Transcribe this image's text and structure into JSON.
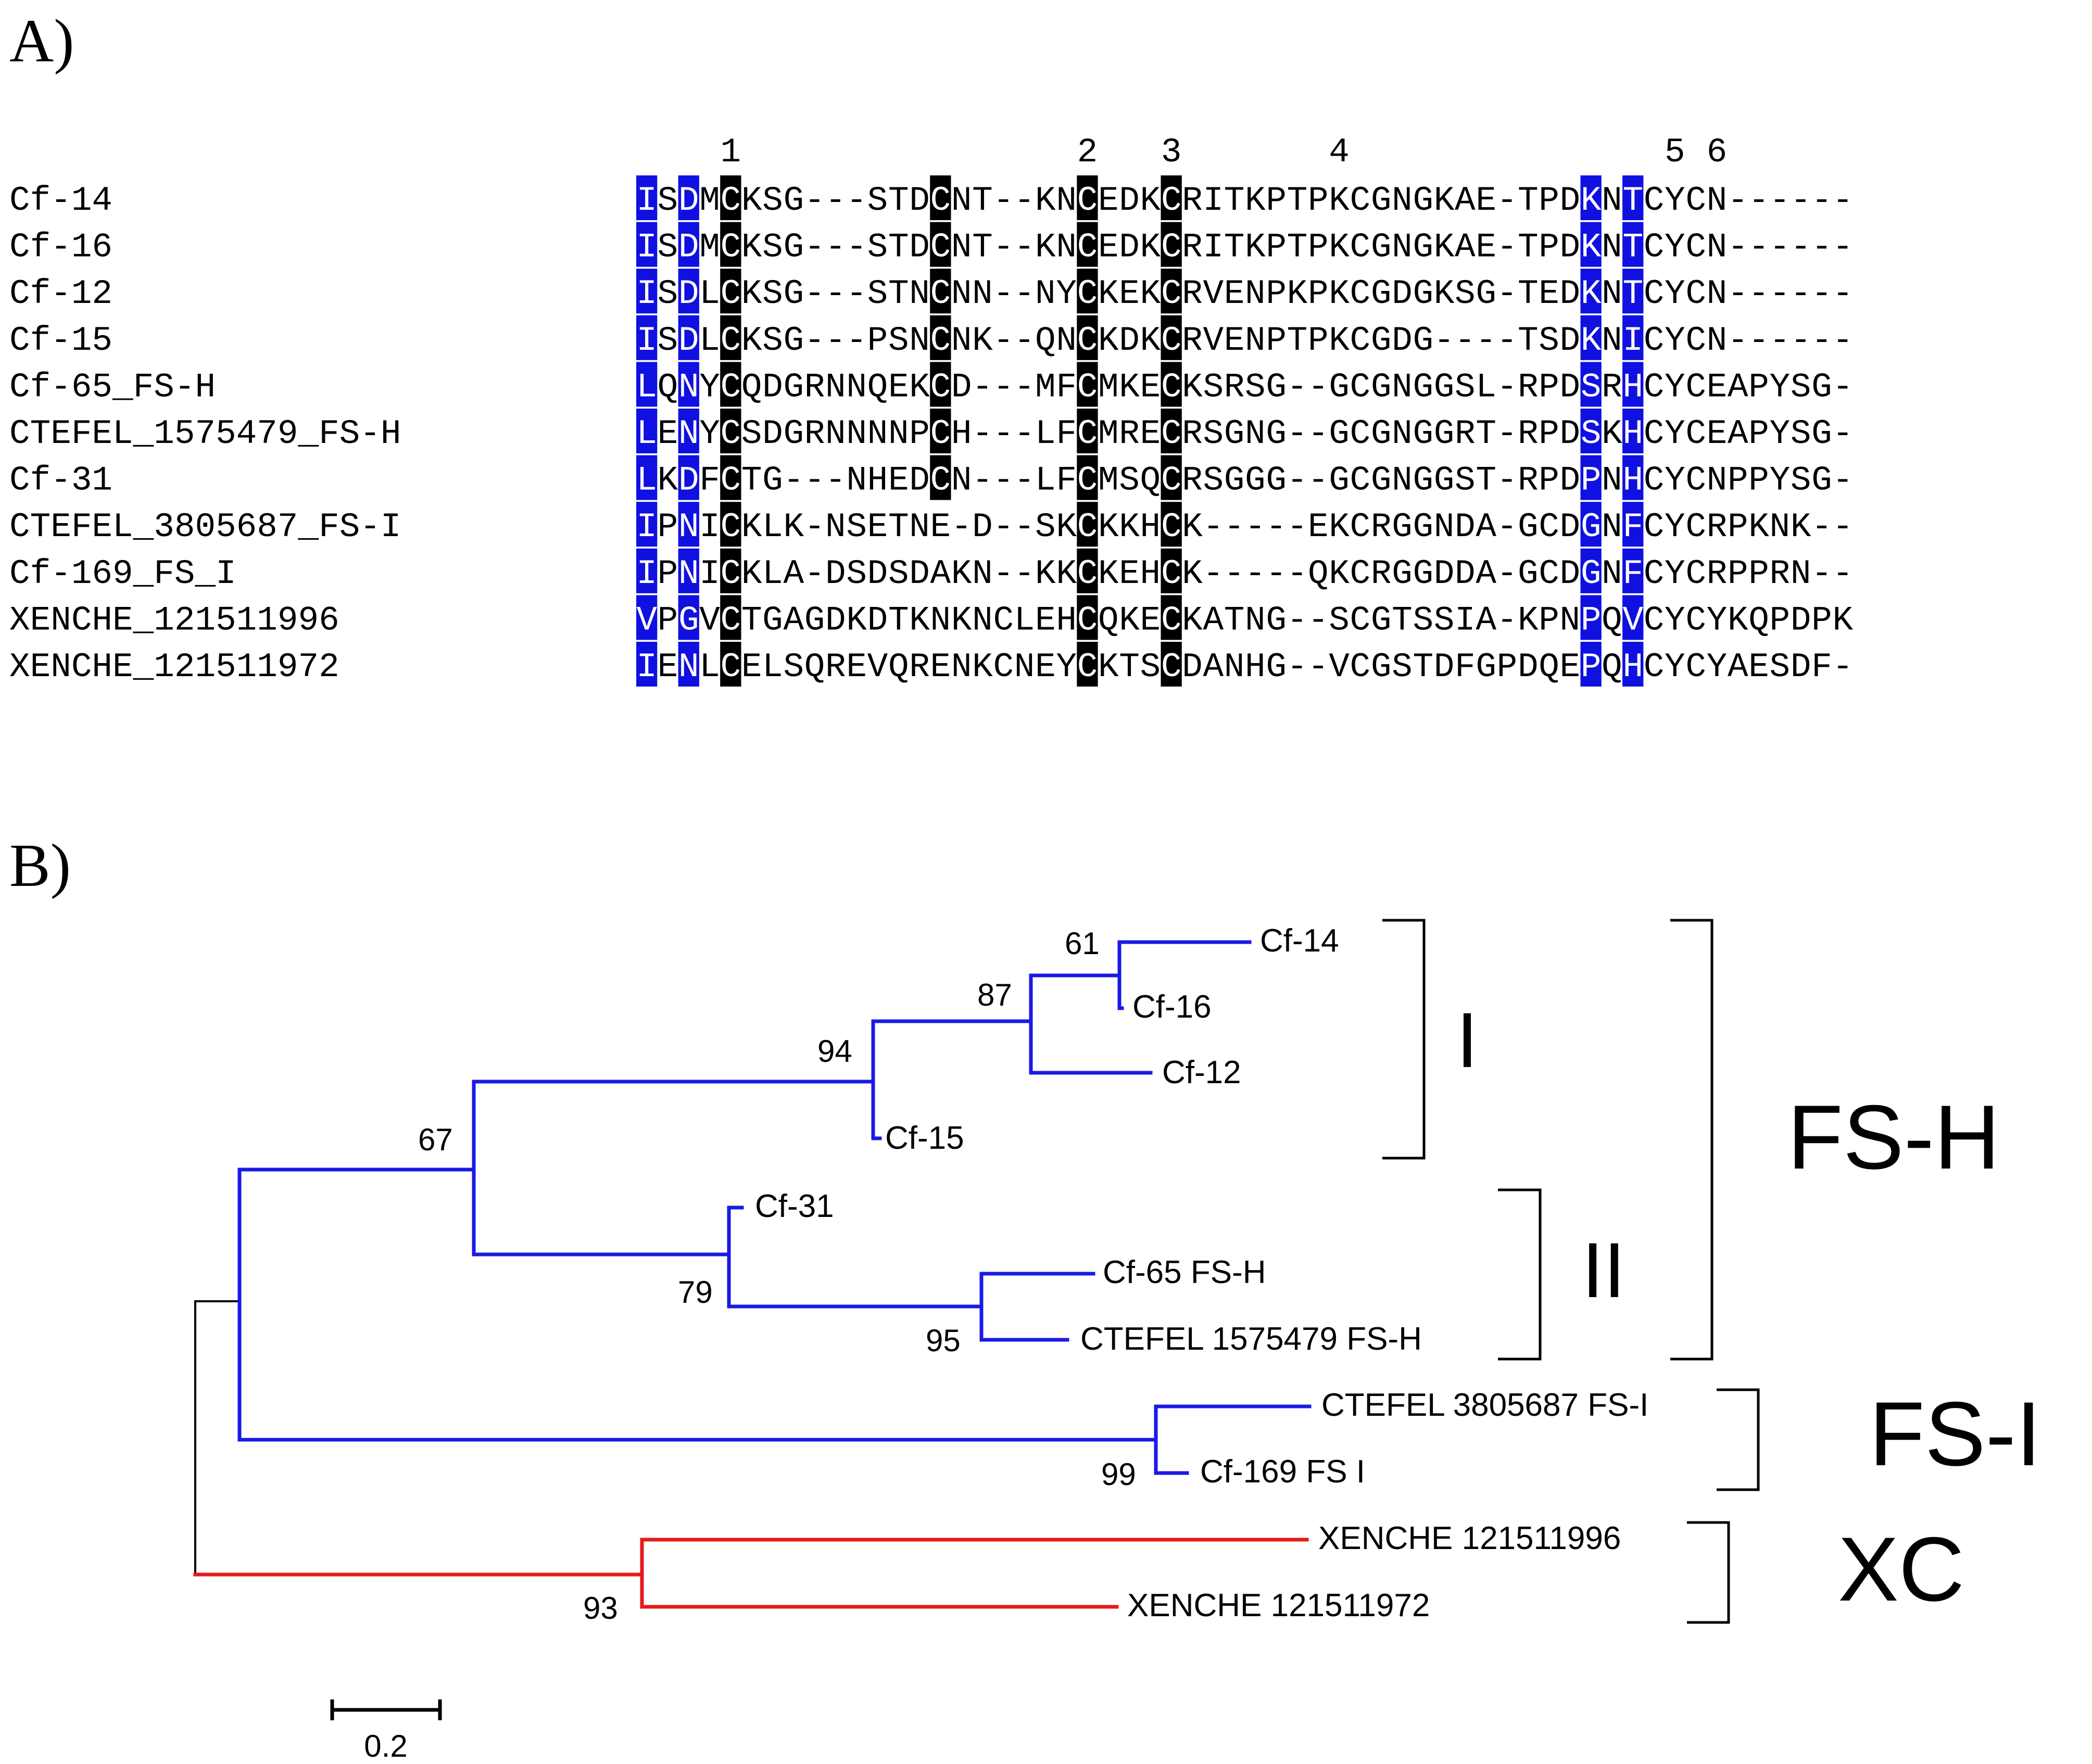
{
  "panels": {
    "a_label": "A)",
    "b_label": "B)"
  },
  "alignment": {
    "cysteine_numbers": [
      {
        "col": 2,
        "label": "1"
      },
      {
        "col": 10,
        "label": "2"
      },
      {
        "col": 12,
        "label": "3"
      },
      {
        "col": 17,
        "label": "4"
      },
      {
        "col": 23,
        "label": "5"
      },
      {
        "col": 24,
        "label": "6"
      }
    ],
    "rows": [
      {
        "name": "Cf-14",
        "seq": "ISDMCKSG---STDCNT--KNCEDKCRITKPTPKCGNGKAE-TPDKNTCYCN------"
      },
      {
        "name": "Cf-16",
        "seq": "ISDMCKSG---STDCNT--KNCEDKCRITKPTPKCGNGKAE-TPDKNTCYCN------"
      },
      {
        "name": "Cf-12",
        "seq": "ISDLCKSG---STNCNN--NYCKEKCRVENPKPKCGDGKSG-TEDKNTCYCN------"
      },
      {
        "name": "Cf-15",
        "seq": "ISDLCKSG---PSNCNK--QNCKDKCRVENPTPKCGDG----TSDKNICYCN------"
      },
      {
        "name": "Cf-65_FS-H",
        "seq": "LQNYCQDGRNNQEKCD---MFCMKECKSRSG--GCGNGGSL-RPDSRHCYCEAPYSG-"
      },
      {
        "name": "CTEFEL_1575479_FS-H",
        "seq": "LENYCSDGRNNNNPCH---LFCMRECRSGNG--GCGNGGRT-RPDSKHCYCEAPYSG-"
      },
      {
        "name": "Cf-31",
        "seq": "LKDFCTG---NHEDCN---LFCMSQCRSGGG--GCGNGGST-RPDPNHCYCNPPYSG-"
      },
      {
        "name": "CTEFEL_3805687_FS-I",
        "seq": "IPNICKLK-NSETNE-D--SKCKKHCK-----EKCRGGNDA-GCDGNFCYCRPKNK--"
      },
      {
        "name": "Cf-169_FS_I",
        "seq": "IPNICKLA-DSDSDAKN--KKCKEHCK-----QKCRGGDDA-GCDGNFCYCRPPRN--"
      },
      {
        "name": "XENCHE_121511996",
        "seq": "VPGVCTGAGDKDTKNKNCLEHCQKECKATNG--SCGTSSIA-KPNPQVCYCYKQPDPK"
      },
      {
        "name": "XENCHE_121511972",
        "seq": "IENLCELSQREVQRENKCNEYCKTSCDANHG--VCGSTDFGPDQEPQHCYCYAESDF-"
      }
    ],
    "legend_colors": {
      "blue": "#1010e0",
      "black": "#000000",
      "yellow": "#f8f000",
      "red": "#e00000"
    }
  },
  "tree": {
    "leaves": [
      {
        "id": "cf14",
        "label": "Cf-14"
      },
      {
        "id": "cf16",
        "label": "Cf-16"
      },
      {
        "id": "cf12",
        "label": "Cf-12"
      },
      {
        "id": "cf15",
        "label": "Cf-15"
      },
      {
        "id": "cf31",
        "label": "Cf-31"
      },
      {
        "id": "cf65",
        "label": "Cf-65 FS-H"
      },
      {
        "id": "ctefel1575479",
        "label": "CTEFEL 1575479 FS-H"
      },
      {
        "id": "ctefel3805687",
        "label": "CTEFEL 3805687 FS-I"
      },
      {
        "id": "cf169",
        "label": "Cf-169 FS I"
      },
      {
        "id": "xenche996",
        "label": "XENCHE 121511996"
      },
      {
        "id": "xenche972",
        "label": "XENCHE 121511972"
      }
    ],
    "bootstrap": [
      "61",
      "87",
      "94",
      "67",
      "79",
      "95",
      "99",
      "93"
    ],
    "clades": {
      "sub_i": "I",
      "sub_ii": "II",
      "fsh": "FS-H",
      "fsi": "FS-I",
      "xc": "XC"
    },
    "scale_bar": "0.2",
    "branch_colors": {
      "fs": "#1a1ae6",
      "xc": "#e61a1a",
      "root": "#000000"
    }
  }
}
